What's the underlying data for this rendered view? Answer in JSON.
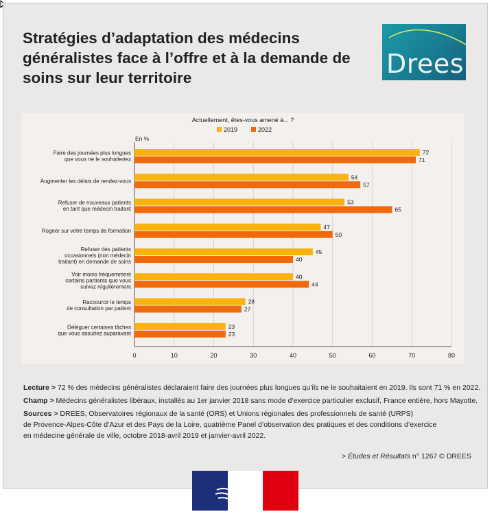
{
  "title": "Stratégies d’adaptation des médecins généralistes face à l’offre et à la demande de soins sur leur territoire",
  "logo_text": "Drees",
  "colors": {
    "series_2019": "#f9b20e",
    "series_2022": "#f0690a",
    "grid": "#d6d3d1",
    "panel": "#f3f0ee",
    "logo_bg": "#1a8b9e"
  },
  "chart_data": {
    "type": "bar",
    "orientation": "horizontal",
    "title": "Actuellement, êtes-vous amené à... ?",
    "unit_label": "En %",
    "xlim": [
      0,
      80
    ],
    "xticks": [
      "0",
      "10",
      "20",
      "30",
      "40",
      "50",
      "60",
      "70",
      "80"
    ],
    "xtick_values": [
      0,
      10,
      20,
      30,
      40,
      50,
      60,
      70,
      80
    ],
    "grid": true,
    "legend_position": "top-center",
    "categories": [
      [
        "Faire des journées plus longues",
        "que vous ne le souhaiteriez"
      ],
      [
        "Augmenter les délais de rendez-vous"
      ],
      [
        "Refuser de nouveaux patients",
        "en tant que médecin traitant"
      ],
      [
        "Rogner sur votre temps de formation"
      ],
      [
        "Refuser des patients",
        "occasionnels (non médecin",
        "traitant) en demande de soins"
      ],
      [
        "Voir moins fréquemment",
        "certains partients que vous",
        "suivez régulièrement"
      ],
      [
        "Raccourcir le temps",
        "de consultation par patient"
      ],
      [
        "Déléguer certaines tâches",
        "que vous assuriez auparavant"
      ]
    ],
    "series": [
      {
        "name": "2019",
        "values": [
          72,
          54,
          53,
          47,
          45,
          40,
          28,
          23
        ]
      },
      {
        "name": "2022",
        "values": [
          71,
          57,
          65,
          50,
          40,
          44,
          27,
          23
        ]
      }
    ]
  },
  "notes": {
    "lecture_label": "Lecture >",
    "lecture_text": " 72 % des médecins généralistes déclaraient faire des journées plus longues qu’ils ne le souhaitaient en 2019. Ils sont 71 % en 2022.",
    "champ_label": "Champ >",
    "champ_text": " Médecins généralistes libéraux, installés au 1er janvier 2018 sans mode d’exercice particulier exclusif, France entière, hors Mayotte.",
    "sources_label": "Sources >",
    "sources_line1": " DREES, Observatoires régionaux de la santé (ORS) et Unions régionales des professionnels de santé (URPS)",
    "sources_line2": "de Provence-Alpes-Côte d’Azur et des Pays de la Loire, quatrième Panel d’observation des pratiques et des conditions d’exercice",
    "sources_line3": "en médecine générale de ville, octobre 2018-avril 2019 et janvier-avril 2022."
  },
  "citation": {
    "prefix": "> ",
    "publication": "Études et Résultats",
    "suffix": " n° 1267 © DREES"
  }
}
